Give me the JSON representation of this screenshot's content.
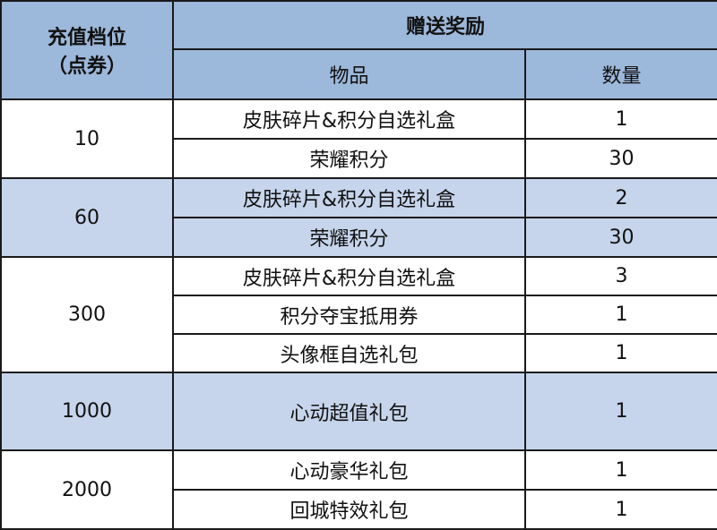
{
  "header": {
    "tier_label": "充值档位\n（点券）",
    "tier_label_line1": "充值档位",
    "tier_label_line2": "（点券）",
    "reward_label": "赠送奖励",
    "item_label": "物品",
    "qty_label": "数量"
  },
  "colors": {
    "header_bg": "#9cb8da",
    "band_bg": "#c6d5eb",
    "border": "#1a1a1a"
  },
  "tiers": [
    {
      "amount": "10",
      "banded": false,
      "rewards": [
        {
          "item": "皮肤碎片&积分自选礼盒",
          "qty": "1"
        },
        {
          "item": "荣耀积分",
          "qty": "30"
        }
      ]
    },
    {
      "amount": "60",
      "banded": true,
      "rewards": [
        {
          "item": "皮肤碎片&积分自选礼盒",
          "qty": "2"
        },
        {
          "item": "荣耀积分",
          "qty": "30"
        }
      ]
    },
    {
      "amount": "300",
      "banded": false,
      "rewards": [
        {
          "item": "皮肤碎片&积分自选礼盒",
          "qty": "3"
        },
        {
          "item": "积分夺宝抵用券",
          "qty": "1"
        },
        {
          "item": "头像框自选礼包",
          "qty": "1"
        }
      ]
    },
    {
      "amount": "1000",
      "banded": true,
      "rewards": [
        {
          "item": "心动超值礼包",
          "qty": "1"
        }
      ]
    },
    {
      "amount": "2000",
      "banded": false,
      "rewards": [
        {
          "item": "心动豪华礼包",
          "qty": "1"
        },
        {
          "item": "回城特效礼包",
          "qty": "1"
        }
      ]
    }
  ]
}
